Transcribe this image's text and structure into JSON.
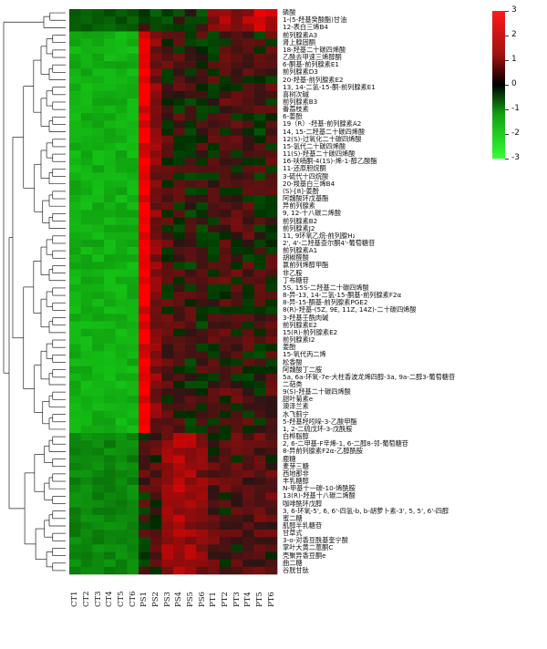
{
  "chart_data": {
    "type": "heatmap",
    "columns": [
      "CT1",
      "CT2",
      "CT3",
      "CT4",
      "CT5",
      "CT6",
      "PS1",
      "PS2",
      "PS3",
      "PS4",
      "PS5",
      "PS6",
      "PT1",
      "PT2",
      "PT3",
      "PT4",
      "PT5",
      "PT6"
    ],
    "rows": [
      "磷酸",
      "1-(5-羟基癸酸酯)甘油",
      "12-表白三烯B4",
      "前列腺素A3",
      "肾上腺固酮",
      "18-羟基二十碳四烯酸",
      "乙酰去甲速三烯醇酮",
      "6-酮基-前列腺素E1",
      "前列腺素D3",
      "20-羟基-前列腺素E2",
      "13, 14-二氢-15-酮-前列腺素E1",
      "喜树次碱",
      "前列腺素B3",
      "番荔枝素",
      "6-姜酚",
      "19（R）-羟基-前列腺素A2",
      "14, 15-二羟基二十碳四烯酸",
      "12(S)-过氧化二十碳四烯酸",
      "15-氢代二十碳四烯酸",
      "11(S)-羟基二十碳四烯酸",
      "16-呋喃酮-4(1S)-烯-1-醇乙酸酯",
      "11-还原胆烷酮",
      "3-硫代十四烷酸",
      "20-羧基白三烯B4",
      "(S)-[8]-姜酚",
      "阿魏酸环戊基酯",
      "异前列腺素",
      "9, 12-十八碳二烯酸",
      "前列腺素B2",
      "前列腺素J2",
      "11, 9环氧乙烷-前列腺H₂",
      "2', 4'-二羟基查尔酮4'-葡萄糖苷",
      "前列腺素A1",
      "胡椒醛酸",
      "氯前列烯醇甲酯",
      "非乙胺",
      "丁布糖苷",
      "5S, 15S-二羟基二十碳四烯酸",
      "8-异-13, 14-二氢-15-酮基-前列腺素F2α",
      "8-异-15-酮基-前列腺素PGE2",
      "8(R)-羟基-(5Z, 9E, 11Z, 14Z)-二十碳四烯酸",
      "3-羟基壬酰肉碱",
      "前列腺素E2",
      "15(R)-前列腺素E2",
      "前列腺素I2",
      "姜酚",
      "15-氧代丙二烯",
      "松香酸",
      "阿魏酸丁二胺",
      "5a, 6a-环氧-7e-大柱香波龙烯四醇-3a, 9a-二醇3-葡萄糖苷",
      "二萜类",
      "9(S)-羟基二十碳四烯酸",
      "甜叶菊素e",
      "澳泽兰素",
      "水飞蓟宁",
      "5-羟基羟吲哚-3-乙酸甲酯",
      "1, 2-二硫戊环-3-戊酰胺",
      "白桦脂醇",
      "2, 6-二甲基-F辛烯-1, 6-二醇8-邻-葡萄糖苷",
      "8-异前列腺素F2α-乙醇酰胺",
      "鹿糖",
      "麦芽三糖",
      "西地那非",
      "丰乳糖醇",
      "N-甲基十一碳-10-烯酰胺",
      "13(R)-羟基十八碳二烯酸",
      "咖啡酰环戊醇",
      "3, 6-环氧-5', 6, 6'-四氢-b, b-胡萝卜素-3', 5, 5', 6'-四醇",
      "蜜二糖",
      "肌醇半乳糖苷",
      "甘草式",
      "3-o-对香豆酰基奎宁酸",
      "掌叶大黄二蒽酮C",
      "壳聚异香豆酮e",
      "曲二糖",
      "谷胱甘肽"
    ],
    "color_scale": {
      "min": -3,
      "max": 3,
      "low_color": "#33ff33",
      "mid_color": "#000000",
      "high_color": "#ff1a1a"
    },
    "legend_ticks": [
      "3",
      "2",
      "1",
      "0",
      "-1",
      "-2",
      "-3"
    ],
    "pattern_note_groups": {
      "group_a_rows": [
        0,
        2
      ],
      "group_b_rows": [
        3,
        56
      ],
      "group_c_rows": [
        57,
        75
      ]
    },
    "approx_group_means": {
      "group_a": [
        -0.6,
        -0.6,
        -0.6,
        -0.6,
        -0.6,
        -0.6,
        -0.3,
        -0.2,
        -0.2,
        -0.2,
        -0.2,
        -0.2,
        1.2,
        1.4,
        1.2,
        1.6,
        2.2,
        1.8
      ],
      "group_b": [
        -1.8,
        -1.8,
        -1.8,
        -1.8,
        -1.8,
        -1.8,
        2.6,
        1.0,
        0.3,
        0.2,
        0.1,
        0.1,
        0.2,
        0.3,
        0.3,
        0.2,
        0.1,
        0.2
      ],
      "group_c": [
        -1.2,
        -1.2,
        -1.2,
        -1.2,
        -1.2,
        -1.2,
        0.2,
        0.5,
        1.2,
        1.6,
        1.4,
        1.0,
        0.5,
        0.4,
        0.4,
        0.3,
        0.6,
        0.5
      ]
    }
  }
}
